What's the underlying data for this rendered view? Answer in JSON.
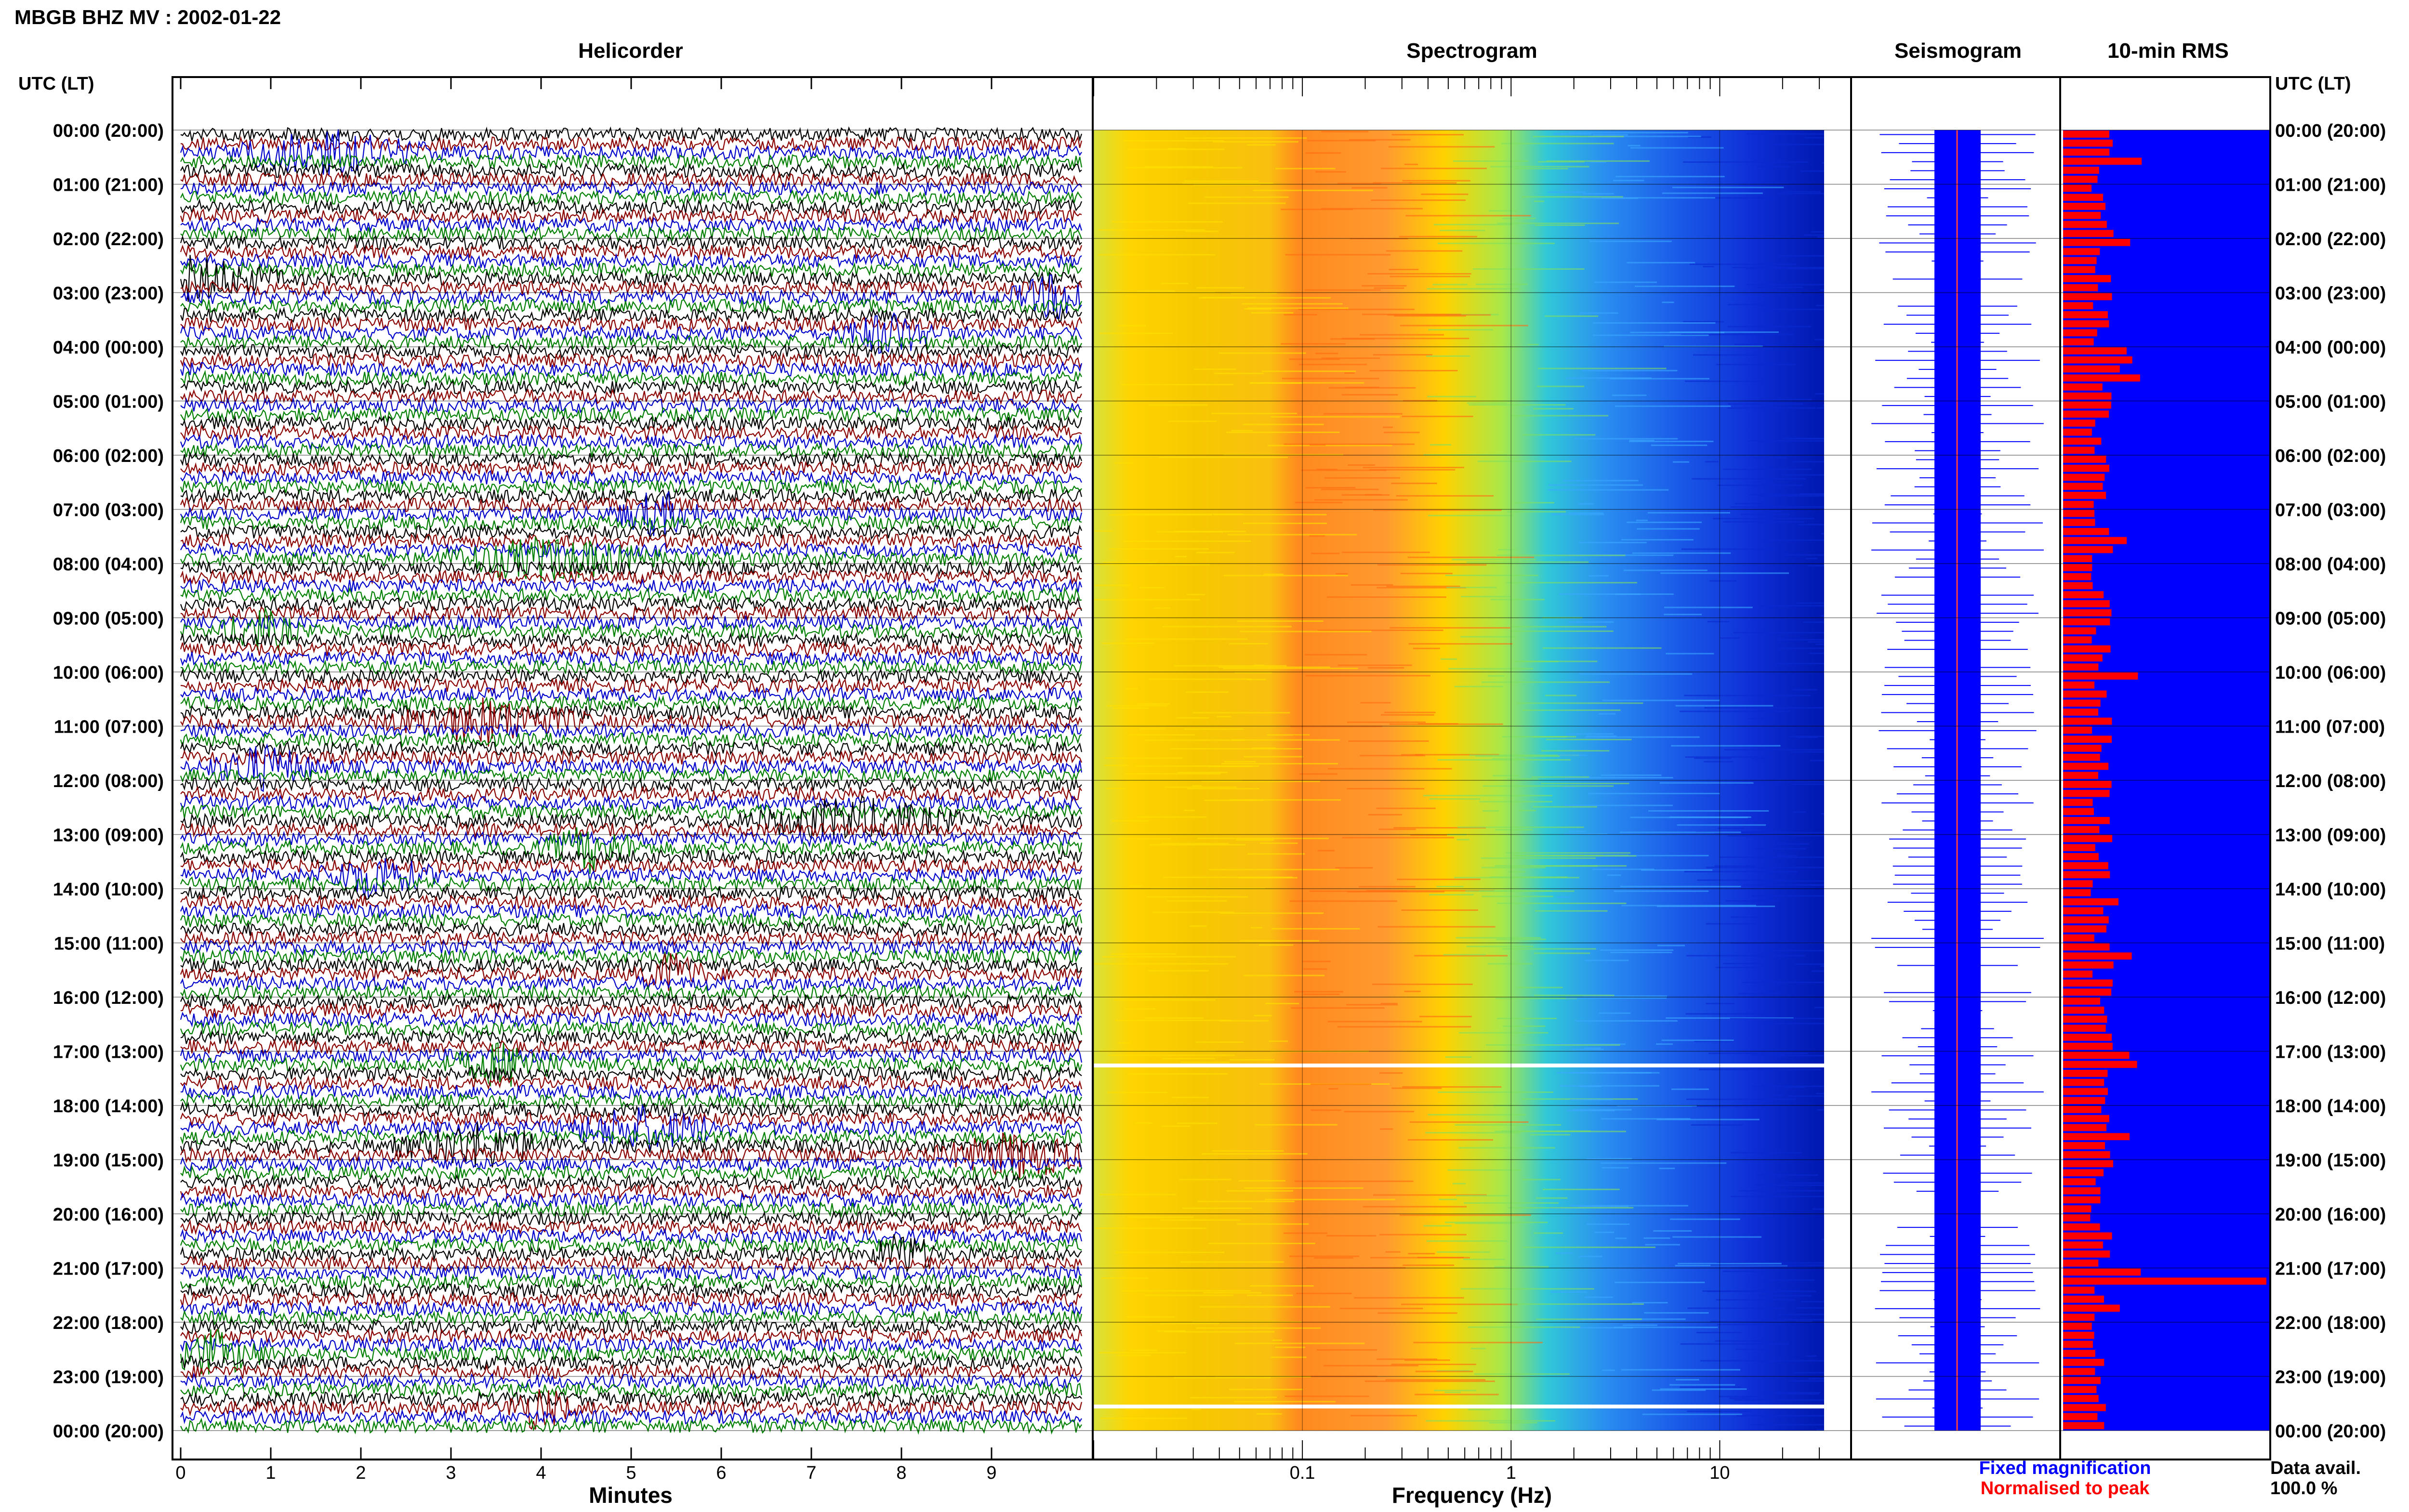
{
  "figure": {
    "title": "MBGB BHZ MV : 2002-01-22",
    "utc_label_left": "UTC (LT)",
    "utc_label_right": "UTC (LT)",
    "footer_fixed": "Fixed magnification",
    "footer_normalised": "Normalised to peak",
    "data_avail_label": "Data avail.",
    "data_avail_value": "100.0 %",
    "colors": {
      "fixed": "#0000ff",
      "normalised": "#ff0000",
      "trace_cycle": [
        "#000000",
        "#8b0000",
        "#0000cd",
        "#008000"
      ],
      "rms_bar": "#ff0000",
      "rms_bg": "#0000ff"
    }
  },
  "chart_data": [
    {
      "type": "line",
      "title": "Helicorder",
      "xlabel": "Minutes",
      "xlim": [
        0,
        10
      ],
      "x_ticks": [
        "0",
        "1",
        "2",
        "3",
        "4",
        "5",
        "6",
        "7",
        "8",
        "9"
      ],
      "rows_per_hour": 6,
      "row_minutes": 10,
      "time_labels": [
        "00:00 (20:00)",
        "01:00 (21:00)",
        "02:00 (22:00)",
        "03:00 (23:00)",
        "04:00 (00:00)",
        "05:00 (01:00)",
        "06:00 (02:00)",
        "07:00 (03:00)",
        "08:00 (04:00)",
        "09:00 (05:00)",
        "10:00 (06:00)",
        "11:00 (07:00)",
        "12:00 (08:00)",
        "13:00 (09:00)",
        "14:00 (10:00)",
        "15:00 (11:00)",
        "16:00 (12:00)",
        "17:00 (13:00)",
        "18:00 (14:00)",
        "19:00 (15:00)",
        "20:00 (16:00)",
        "21:00 (17:00)",
        "22:00 (18:00)",
        "23:00 (19:00)",
        "00:00 (20:00)"
      ]
    },
    {
      "type": "heatmap",
      "title": "Spectrogram",
      "xlabel": "Frequency (Hz)",
      "x_scale": "log",
      "x_ticks": [
        "0.1",
        "1",
        "10"
      ],
      "gaps_utc": [
        "17:10",
        "23:50"
      ]
    },
    {
      "type": "line",
      "title": "Seismogram"
    },
    {
      "type": "bar",
      "title": "10-min RMS",
      "rms_peak_utc": "21:10"
    }
  ]
}
